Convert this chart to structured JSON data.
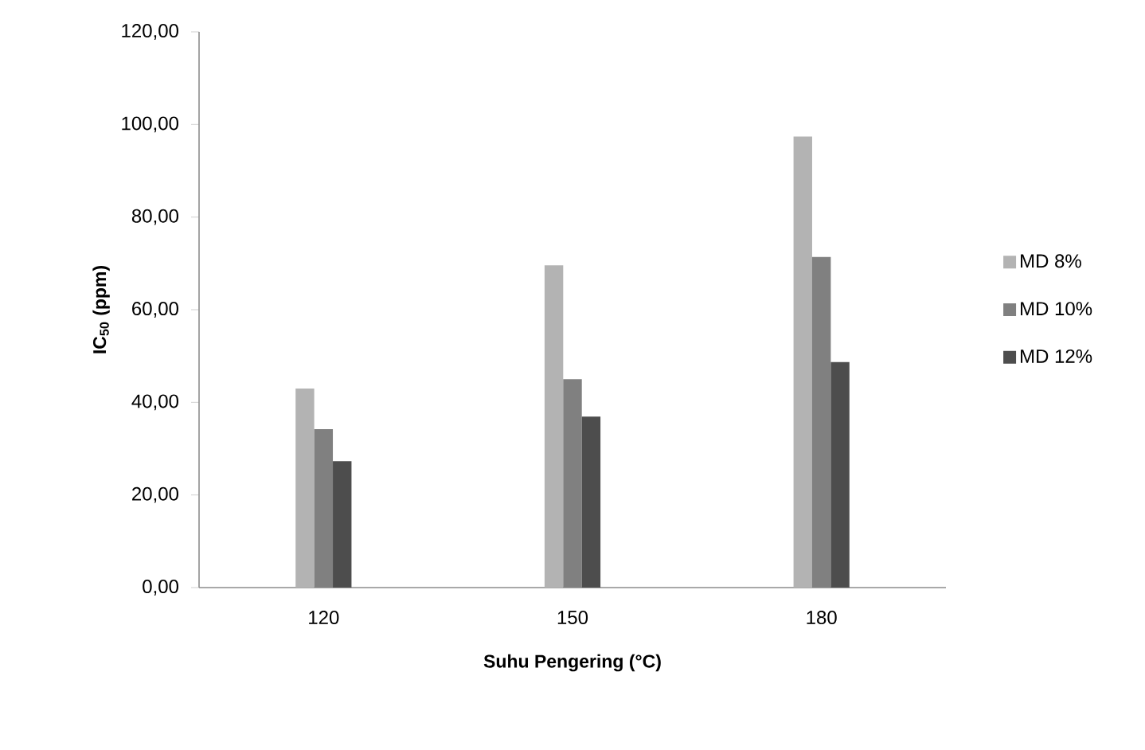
{
  "chart_data": {
    "type": "bar",
    "xlabel": "Suhu Pengering (°C)",
    "ylabel": "IC$_{50}$ (ppm)",
    "categories": [
      "120",
      "150",
      "180"
    ],
    "series": [
      {
        "name": "MD 8%",
        "color": "#b3b3b3",
        "values": [
          43.0,
          69.6,
          97.4
        ]
      },
      {
        "name": "MD 10%",
        "color": "#808080",
        "values": [
          34.2,
          45.0,
          71.4
        ]
      },
      {
        "name": "MD 12%",
        "color": "#4d4d4d",
        "values": [
          27.3,
          36.9,
          48.7
        ]
      }
    ],
    "ylim": [
      0,
      120
    ],
    "yticks": [
      {
        "value": 0,
        "label": "0,00"
      },
      {
        "value": 20,
        "label": "20,00"
      },
      {
        "value": 40,
        "label": "40,00"
      },
      {
        "value": 60,
        "label": "60,00"
      },
      {
        "value": 80,
        "label": "80,00"
      },
      {
        "value": 100,
        "label": "100,00"
      },
      {
        "value": 120,
        "label": "120,00"
      }
    ],
    "legend": "right",
    "grid": false
  }
}
